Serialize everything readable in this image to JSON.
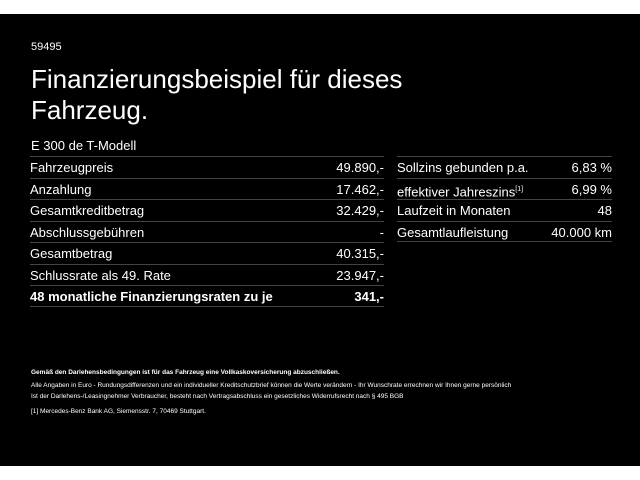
{
  "offer_code": "59495",
  "title": "Finanzierungsbeispiel für dieses Fahrzeug.",
  "model": "E 300 de T-Modell",
  "left_rows": [
    {
      "label": "Fahrzeugpreis",
      "value": "49.890,-"
    },
    {
      "label": "Anzahlung",
      "value": "17.462,-"
    },
    {
      "label": "Gesamtkreditbetrag",
      "value": "32.429,-"
    },
    {
      "label": "Abschlussgebühren",
      "value": "-"
    },
    {
      "label": "Gesamtbetrag",
      "value": "40.315,-"
    },
    {
      "label": "Schlussrate als 49. Rate",
      "value": "23.947,-"
    },
    {
      "label": "48 monatliche Finanzierungsraten zu je",
      "value": "341,-"
    }
  ],
  "right_rows": [
    {
      "label": "Sollzins gebunden p.a.",
      "sup": "",
      "value": "6,83 %"
    },
    {
      "label": "effektiver Jahreszins",
      "sup": "[1]",
      "value": "6,99 %"
    },
    {
      "label": "Laufzeit in Monaten",
      "sup": "",
      "value": "48"
    },
    {
      "label": "Gesamtlaufleistung",
      "sup": "",
      "value": "40.000 km"
    }
  ],
  "footer": {
    "insurance": "Gemäß den Darlehensbedingungen ist für das Fahrzeug eine Vollkaskoversicherung abzuschließen.",
    "line1": "Alle Angaben in Euro - Rundungsdifferenzen und ein individueller Kreditschutzbrief können die Werte verändern - Ihr Wunschrate errechnen wir Ihnen gerne persönlich",
    "line2": "Ist der Darlehens-/Leasingnehmer Verbraucher, besteht nach Vertragsabschluss ein gesetzliches Widerrufsrecht nach § 495 BGB",
    "note": "[1] Mercedes-Benz Bank AG, Siemensstr. 7, 70469 Stuttgart."
  }
}
